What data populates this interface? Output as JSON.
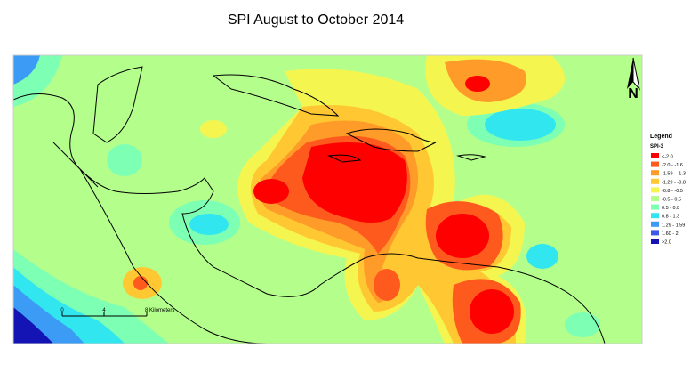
{
  "title": "SPI August to October 2014",
  "north_arrow": "N",
  "legend": {
    "title": "Legend",
    "subtitle": "SPI-3",
    "items": [
      {
        "label": "<-2.0",
        "color": "#ff0000"
      },
      {
        "label": "-2.0 - -1.6",
        "color": "#ff5a1e"
      },
      {
        "label": "-1.59 - -1.3",
        "color": "#ff9b28"
      },
      {
        "label": "-1.29 - -0.8",
        "color": "#ffc832"
      },
      {
        "label": "-0.8 - -0.5",
        "color": "#f5f550"
      },
      {
        "label": "-0.5 - 0.5",
        "color": "#b4ff8c"
      },
      {
        "label": "0.5 - 0.8",
        "color": "#7dffb4"
      },
      {
        "label": "0.8 - 1.3",
        "color": "#32e6f0"
      },
      {
        "label": "1.29 - 1.59",
        "color": "#3c9bf5"
      },
      {
        "label": "1.60 - 2",
        "color": "#3c5ae6"
      },
      {
        "label": ">2.0",
        "color": "#1414b4"
      }
    ]
  },
  "scale_bar": {
    "labels": [
      "0",
      "4",
      "8 Kilometers"
    ]
  }
}
